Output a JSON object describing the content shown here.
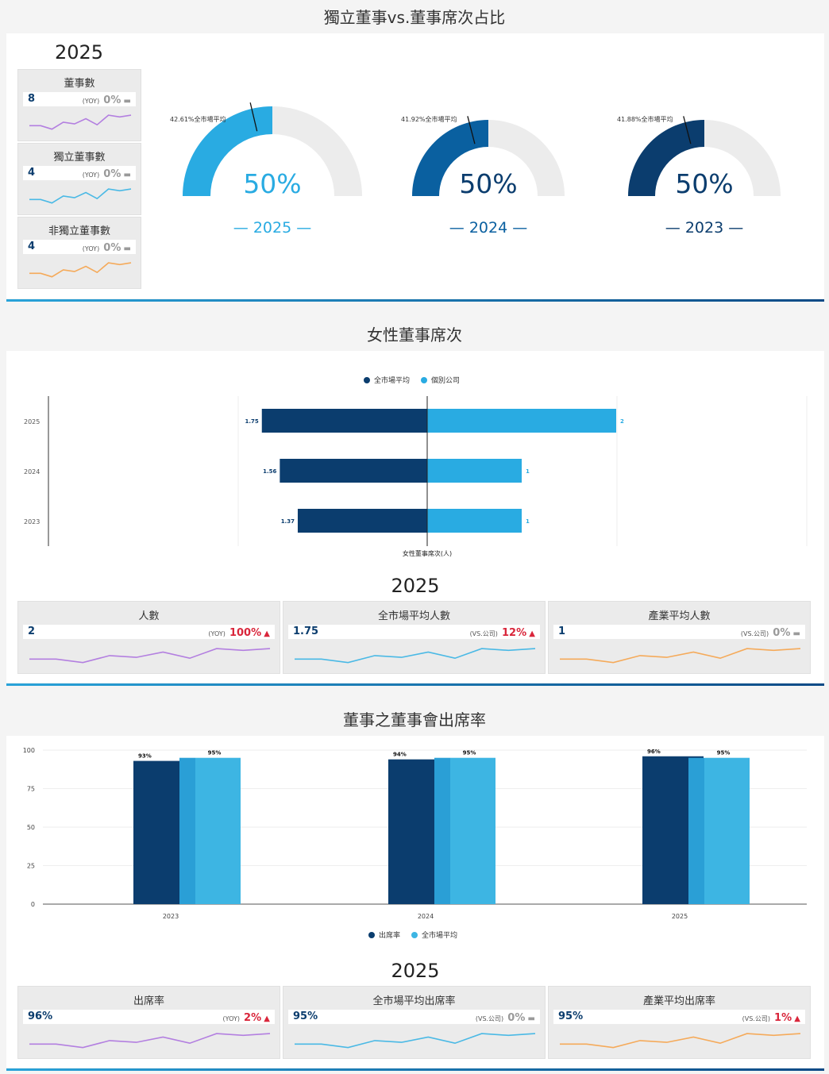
{
  "colors": {
    "dark_navy": "#0b3d6e",
    "mid_blue": "#0a60a0",
    "light_blue": "#29abe2",
    "bar_light": "#3db5e3",
    "gauge_rest": "#ececec",
    "purple": "#b37fe0",
    "cyan": "#4ab9e5",
    "orange": "#f5aa5a",
    "red": "#d9263b",
    "grey": "#9a9a9a"
  },
  "section1": {
    "title": "獨立董事vs.董事席次占比",
    "year": "2025",
    "cards": [
      {
        "title": "董事數",
        "value": "8",
        "change_label": "(YOY)",
        "change": "0%",
        "trend": "flat",
        "spark_color": "purple"
      },
      {
        "title": "獨立董事數",
        "value": "4",
        "change_label": "(YOY)",
        "change": "0%",
        "trend": "flat",
        "spark_color": "cyan"
      },
      {
        "title": "非獨立董事數",
        "value": "4",
        "change_label": "(YOY)",
        "change": "0%",
        "trend": "flat",
        "spark_color": "orange"
      }
    ],
    "gauges": [
      {
        "year_label": "— 2025 —",
        "value_label": "50%",
        "value": 50,
        "avg_label": "42.61%全市場平均",
        "avg": 42.61,
        "color": "#29abe2"
      },
      {
        "year_label": "— 2024 —",
        "value_label": "50%",
        "value": 50,
        "avg_label": "41.92%全市場平均",
        "avg": 41.92,
        "color": "#0a60a0"
      },
      {
        "year_label": "— 2023 —",
        "value_label": "50%",
        "value": 50,
        "avg_label": "41.88%全市場平均",
        "avg": 41.88,
        "color": "#0b3d6e"
      }
    ]
  },
  "section2": {
    "title": "女性董事席次",
    "year": "2025",
    "cards": [
      {
        "title": "人數",
        "value": "2",
        "change_label": "(YOY)",
        "change": "100%",
        "trend": "up",
        "spark_color": "purple"
      },
      {
        "title": "全市場平均人數",
        "value": "1.75",
        "change_label": "(VS.公司)",
        "change": "12%",
        "trend": "up",
        "spark_color": "cyan"
      },
      {
        "title": "產業平均人數",
        "value": "1",
        "change_label": "(VS.公司)",
        "change": "0%",
        "trend": "flat",
        "spark_color": "orange"
      }
    ]
  },
  "section3": {
    "title": "董事之董事會出席率",
    "year": "2025",
    "cards": [
      {
        "title": "出席率",
        "value": "96%",
        "change_label": "(YOY)",
        "change": "2%",
        "trend": "up",
        "spark_color": "purple"
      },
      {
        "title": "全市場平均出席率",
        "value": "95%",
        "change_label": "(VS.公司)",
        "change": "0%",
        "trend": "flat",
        "spark_color": "cyan"
      },
      {
        "title": "產業平均出席率",
        "value": "95%",
        "change_label": "(VS.公司)",
        "change": "1%",
        "trend": "up",
        "spark_color": "orange"
      }
    ]
  },
  "chart_data": [
    {
      "type": "bar",
      "orientation": "horizontal-diverging",
      "categories": [
        "2025",
        "2024",
        "2023"
      ],
      "series": [
        {
          "name": "全市場平均",
          "values": [
            1.75,
            1.56,
            1.37
          ],
          "labels": [
            "1.75",
            "1.56",
            "1.37"
          ],
          "color": "#0b3d6e"
        },
        {
          "name": "個別公司",
          "values": [
            2,
            1,
            1
          ],
          "labels": [
            "2",
            "1",
            "1"
          ],
          "color": "#29abe2"
        }
      ],
      "xlabel": "女性董事席次(人)",
      "legend": "top-center",
      "grid": true
    },
    {
      "type": "bar",
      "categories": [
        "2023",
        "2024",
        "2025"
      ],
      "series": [
        {
          "name": "出席率",
          "values": [
            93,
            94,
            96
          ],
          "labels": [
            "93%",
            "94%",
            "96%"
          ],
          "color": "#0b3d6e"
        },
        {
          "name": "全市場平均",
          "values": [
            95,
            95,
            95
          ],
          "labels": [
            "95%",
            "95%",
            "95%"
          ],
          "color": "#3db5e3"
        }
      ],
      "yticks": [
        "0",
        "25",
        "50",
        "75",
        "100"
      ],
      "ylim": [
        0,
        100
      ],
      "legend": "bottom-center",
      "grid": true
    }
  ]
}
